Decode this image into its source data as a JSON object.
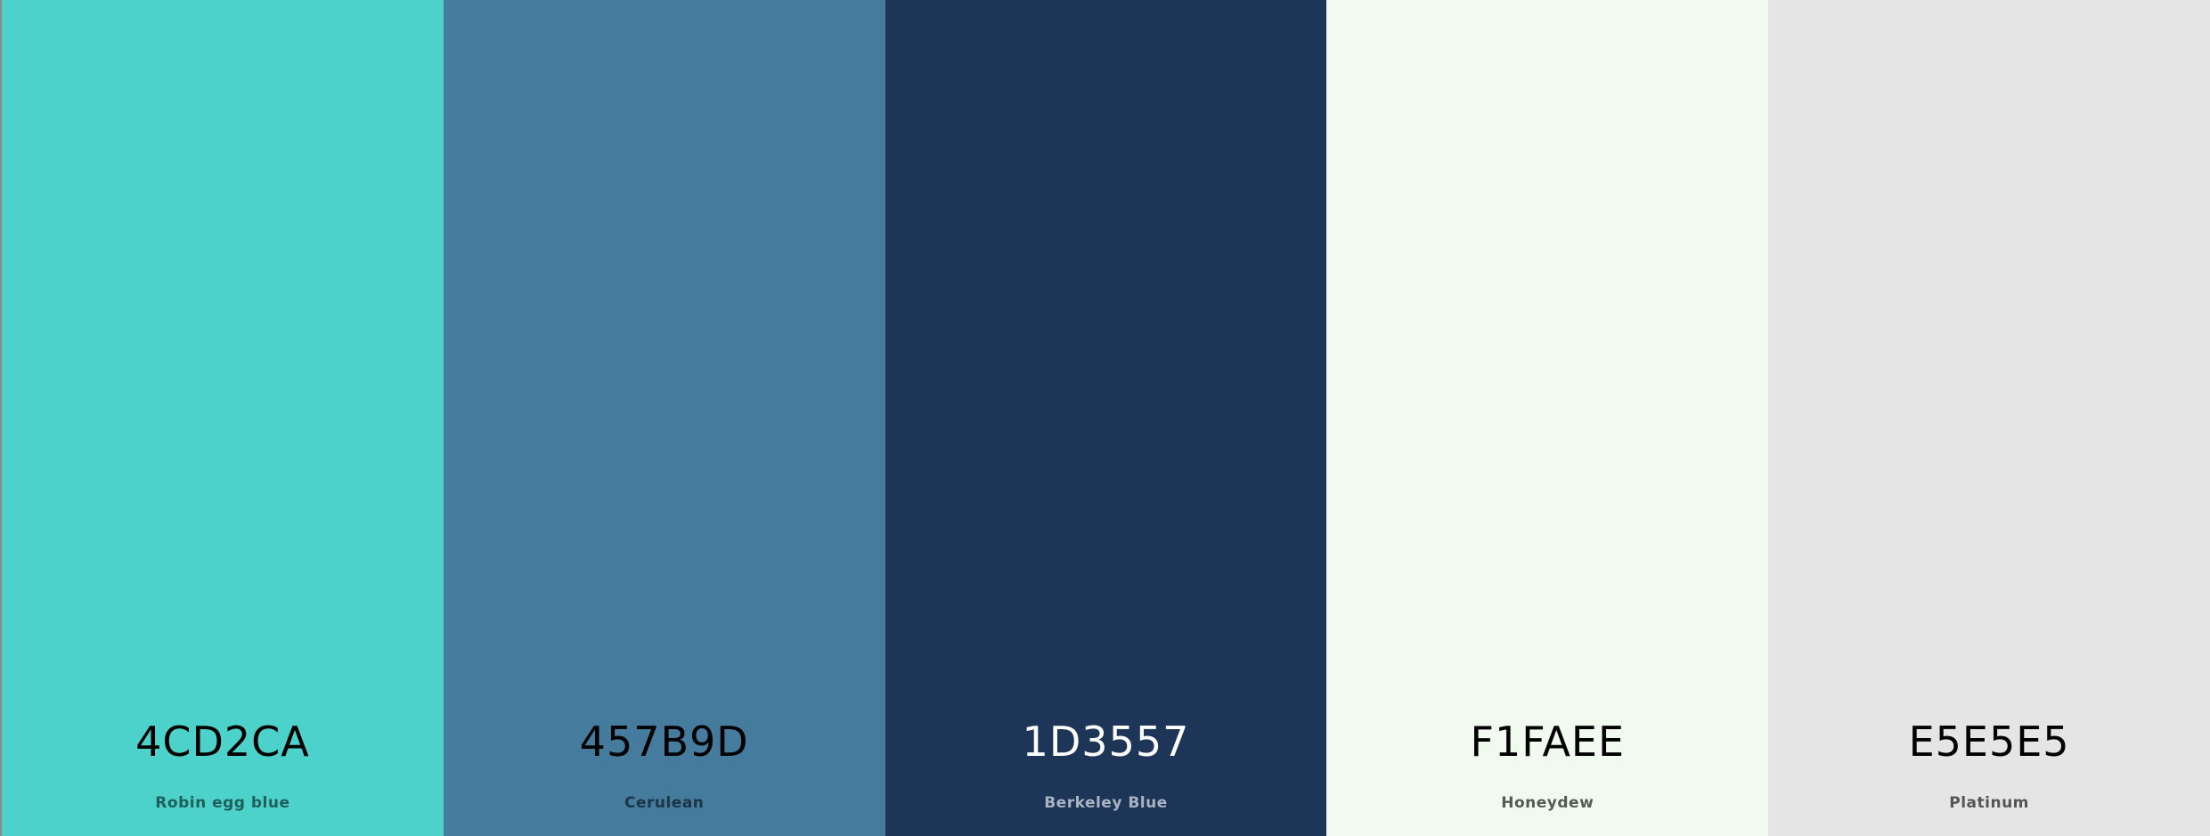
{
  "swatches": [
    {
      "hex": "4CD2CA",
      "name": "Robin egg blue",
      "color": "#4CD2CA",
      "hex_color": "#000000",
      "name_color": "#1f5f5b"
    },
    {
      "hex": "457B9D",
      "name": "Cerulean",
      "color": "#457B9D",
      "hex_color": "#000000",
      "name_color": "#1c3445"
    },
    {
      "hex": "1D3557",
      "name": "Berkeley Blue",
      "color": "#1D3557",
      "hex_color": "#ffffff",
      "name_color": "#a9b3c1"
    },
    {
      "hex": "F1FAEE",
      "name": "Honeydew",
      "color": "#F1FAEE",
      "hex_color": "#000000",
      "name_color": "#555a55"
    },
    {
      "hex": "E5E5E5",
      "name": "Platinum",
      "color": "#E5E5E5",
      "hex_color": "#000000",
      "name_color": "#555555"
    }
  ]
}
